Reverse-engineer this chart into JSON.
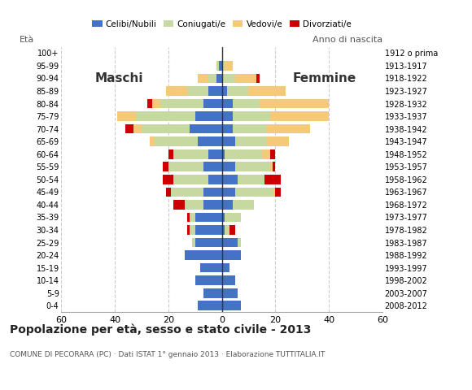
{
  "age_groups": [
    "0-4",
    "5-9",
    "10-14",
    "15-19",
    "20-24",
    "25-29",
    "30-34",
    "35-39",
    "40-44",
    "45-49",
    "50-54",
    "55-59",
    "60-64",
    "65-69",
    "70-74",
    "75-79",
    "80-84",
    "85-89",
    "90-94",
    "95-99",
    "100+"
  ],
  "birth_years": [
    "2008-2012",
    "2003-2007",
    "1998-2002",
    "1993-1997",
    "1988-1992",
    "1983-1987",
    "1978-1982",
    "1973-1977",
    "1968-1972",
    "1963-1967",
    "1958-1962",
    "1953-1957",
    "1948-1952",
    "1943-1947",
    "1938-1942",
    "1933-1937",
    "1928-1932",
    "1923-1927",
    "1918-1922",
    "1913-1917",
    "1912 o prima"
  ],
  "male_celibi": [
    9,
    7,
    10,
    8,
    14,
    10,
    10,
    10,
    7,
    7,
    5,
    7,
    5,
    9,
    12,
    10,
    7,
    5,
    2,
    1,
    0
  ],
  "male_coniugati": [
    0,
    0,
    0,
    0,
    0,
    1,
    2,
    2,
    7,
    12,
    13,
    13,
    13,
    16,
    18,
    22,
    16,
    8,
    3,
    1,
    0
  ],
  "male_vedovi": [
    0,
    0,
    0,
    0,
    0,
    0,
    0,
    0,
    0,
    0,
    0,
    0,
    0,
    2,
    3,
    7,
    3,
    8,
    4,
    0,
    0
  ],
  "male_divorziati": [
    0,
    0,
    0,
    0,
    0,
    0,
    1,
    1,
    4,
    2,
    4,
    2,
    2,
    0,
    3,
    0,
    2,
    0,
    0,
    0,
    0
  ],
  "female_celibi": [
    7,
    6,
    5,
    3,
    7,
    6,
    1,
    1,
    4,
    5,
    6,
    5,
    1,
    5,
    4,
    4,
    4,
    2,
    0,
    0,
    0
  ],
  "female_coniugati": [
    0,
    0,
    0,
    0,
    0,
    1,
    2,
    6,
    8,
    14,
    10,
    13,
    14,
    12,
    13,
    14,
    10,
    8,
    5,
    1,
    0
  ],
  "female_vedovi": [
    0,
    0,
    0,
    0,
    0,
    0,
    0,
    0,
    0,
    1,
    0,
    1,
    3,
    8,
    16,
    22,
    26,
    14,
    8,
    3,
    0
  ],
  "female_divorziati": [
    0,
    0,
    0,
    0,
    0,
    0,
    2,
    0,
    0,
    2,
    6,
    1,
    2,
    0,
    0,
    0,
    0,
    0,
    1,
    0,
    0
  ],
  "colors": {
    "celibi": "#4472c4",
    "coniugati": "#c5d9a0",
    "vedovi": "#f5c97a",
    "divorziati": "#cc0000"
  },
  "title": "Popolazione per età, sesso e stato civile - 2013",
  "subtitle": "COMUNE DI PECORARA (PC) · Dati ISTAT 1° gennaio 2013 · Elaborazione TUTTITALIA.IT",
  "xlabel_left": "Maschi",
  "xlabel_right": "Femmine",
  "ylabel_left": "Età",
  "ylabel_right": "Anno di nascita",
  "xlim": 60,
  "bg_color": "#ffffff",
  "grid_color": "#cccccc"
}
